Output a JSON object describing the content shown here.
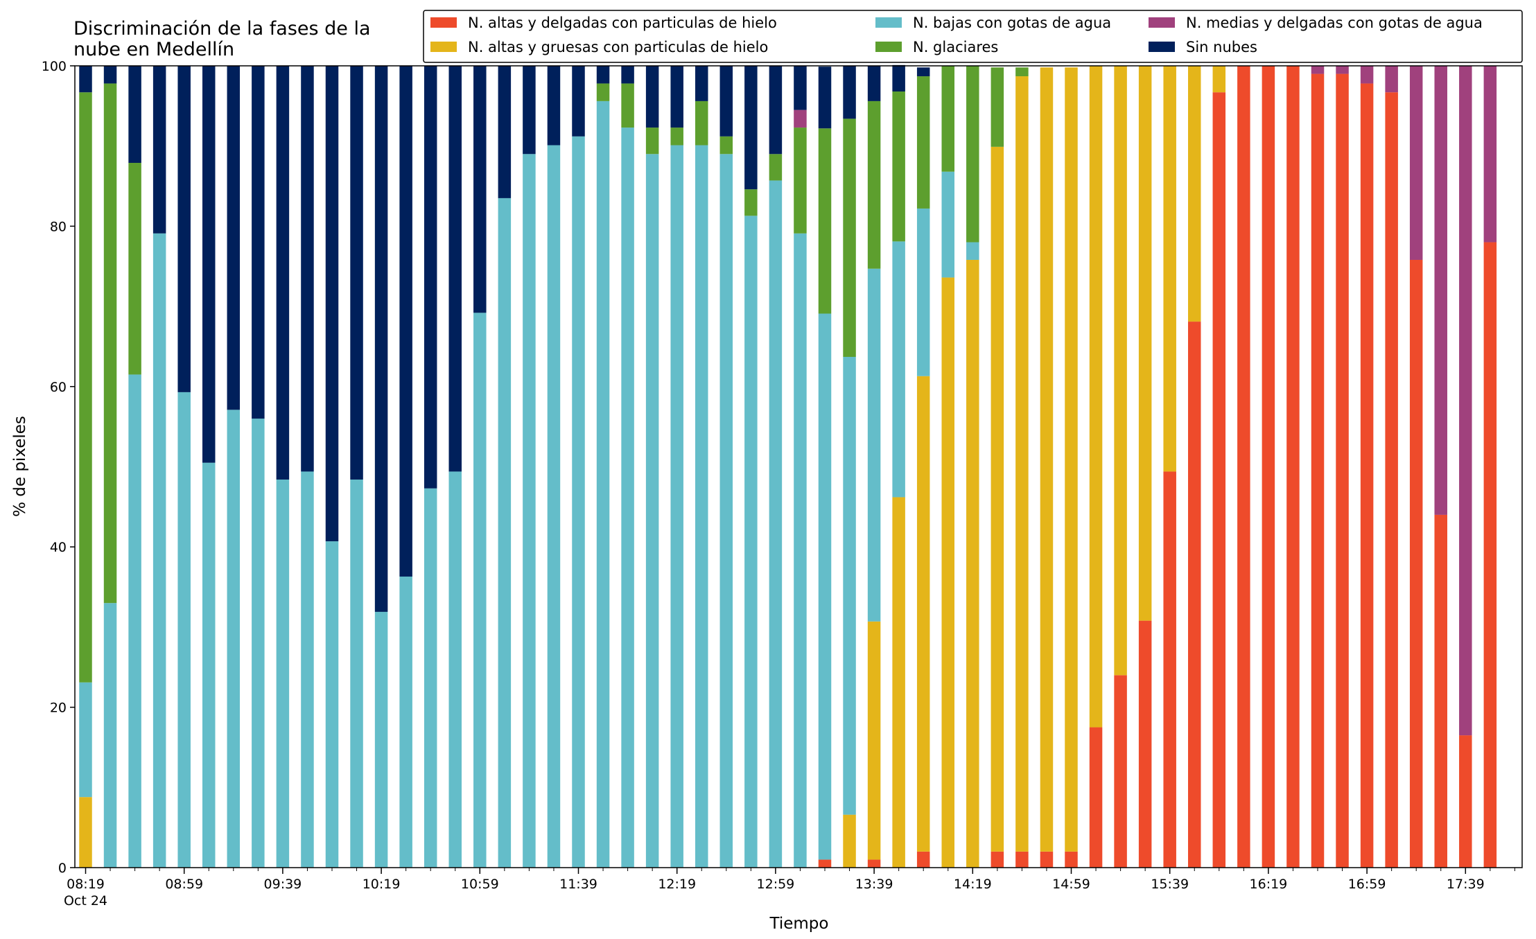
{
  "chart_data": {
    "type": "bar",
    "stacked": true,
    "title": "Discriminación de la fases de la\nnube en Medellín",
    "xlabel": "Tiempo",
    "ylabel": "% de pixeles",
    "ylim": [
      0,
      100
    ],
    "yticks": [
      0,
      20,
      40,
      60,
      80,
      100
    ],
    "grid": false,
    "legend_position": "top-right",
    "x_tick_labels": [
      {
        "index": 0,
        "label": "08:19",
        "sub": "Oct 24"
      },
      {
        "index": 4,
        "label": "08:59"
      },
      {
        "index": 8,
        "label": "09:39"
      },
      {
        "index": 12,
        "label": "10:19"
      },
      {
        "index": 16,
        "label": "10:59"
      },
      {
        "index": 20,
        "label": "11:39"
      },
      {
        "index": 24,
        "label": "12:19"
      },
      {
        "index": 28,
        "label": "12:59"
      },
      {
        "index": 32,
        "label": "13:39"
      },
      {
        "index": 36,
        "label": "14:19"
      },
      {
        "index": 40,
        "label": "14:59"
      },
      {
        "index": 44,
        "label": "15:39"
      },
      {
        "index": 48,
        "label": "16:19"
      },
      {
        "index": 52,
        "label": "16:59"
      },
      {
        "index": 56,
        "label": "17:39"
      }
    ],
    "series": [
      {
        "name": "N. altas y delgadas con particulas de hielo",
        "color": "#EE4B2B",
        "values": [
          0,
          0,
          0,
          0,
          0,
          0,
          0,
          0,
          0,
          0,
          0,
          0,
          0,
          0,
          0,
          0,
          0,
          0,
          0,
          0,
          0,
          0,
          0,
          0,
          0,
          0,
          0,
          0,
          0,
          0,
          1,
          0,
          1,
          0,
          2,
          0,
          0,
          2,
          2,
          2,
          2,
          17.5,
          24,
          30.8,
          49.4,
          68.1,
          96.7,
          100,
          100,
          100,
          99,
          99,
          97.8,
          96.7,
          75.8,
          44,
          16.5,
          78
        ]
      },
      {
        "name": "N. altas y gruesas con particulas de hielo",
        "color": "#E4B51A",
        "values": [
          8.8,
          0,
          0,
          0,
          0,
          0,
          0,
          0,
          0,
          0,
          0,
          0,
          0,
          0,
          0,
          0,
          0,
          0,
          0,
          0,
          0,
          0,
          0,
          0,
          0,
          0,
          0,
          0,
          0,
          0,
          0,
          6.6,
          29.7,
          46.2,
          59.3,
          73.6,
          75.8,
          87.9,
          96.7,
          97.8,
          97.8,
          82.5,
          76,
          69.2,
          50.6,
          31.9,
          3.3,
          0,
          0,
          0,
          0,
          0,
          0,
          0,
          0,
          0,
          0,
          0
        ]
      },
      {
        "name": "N. bajas con gotas de agua",
        "color": "#64BDC9",
        "values": [
          14.3,
          33,
          61.5,
          79.1,
          59.3,
          50.5,
          57.1,
          56,
          48.4,
          49.4,
          40.7,
          48.4,
          31.9,
          36.3,
          47.3,
          49.4,
          69.2,
          83.5,
          89,
          90.1,
          91.2,
          95.6,
          92.3,
          89,
          90.1,
          90.1,
          89,
          81.3,
          85.7,
          79.1,
          68.1,
          57.1,
          44,
          31.9,
          20.9,
          13.2,
          2.2,
          0,
          0,
          0,
          0,
          0,
          0,
          0,
          0,
          0,
          0,
          0,
          0,
          0,
          0,
          0,
          0,
          0,
          0,
          0,
          0,
          0
        ]
      },
      {
        "name": "N. glaciares",
        "color": "#5D9F2E",
        "values": [
          73.6,
          64.8,
          26.4,
          0,
          0,
          0,
          0,
          0,
          0,
          0,
          0,
          0,
          0,
          0,
          0,
          0,
          0,
          0,
          0,
          0,
          0,
          2.2,
          5.5,
          3.3,
          2.2,
          5.5,
          2.2,
          3.3,
          3.3,
          13.2,
          23.1,
          29.7,
          20.9,
          18.7,
          16.5,
          13.2,
          22,
          9.9,
          1.1,
          0,
          0,
          0,
          0,
          0,
          0,
          0,
          0,
          0,
          0,
          0,
          0,
          0,
          0,
          0,
          0,
          0,
          0,
          0
        ]
      },
      {
        "name": "N. medias y delgadas con gotas de agua",
        "color": "#A0417D",
        "values": [
          0,
          0,
          0,
          0,
          0,
          0,
          0,
          0,
          0,
          0,
          0,
          0,
          0,
          0,
          0,
          0,
          0,
          0,
          0,
          0,
          0,
          0,
          0,
          0,
          0,
          0,
          0,
          0,
          0,
          2.2,
          0,
          0,
          0,
          0,
          0,
          0,
          0,
          0,
          0,
          0,
          0,
          0,
          0,
          0,
          0,
          0,
          0,
          0,
          0,
          0,
          1,
          1,
          2.2,
          3.3,
          24.2,
          56,
          83.5,
          22
        ]
      },
      {
        "name": "Sin nubes",
        "color": "#00205B",
        "values": [
          3.3,
          2.2,
          12.1,
          20.9,
          40.7,
          49.5,
          42.9,
          44,
          51.6,
          50.6,
          59.3,
          51.6,
          68.1,
          63.7,
          52.7,
          50.6,
          30.8,
          16.5,
          11,
          9.9,
          8.8,
          2.2,
          2.2,
          7.7,
          7.7,
          4.4,
          8.8,
          15.4,
          11,
          5.5,
          7.7,
          6.6,
          4.4,
          3.3,
          1.1,
          0,
          0,
          0,
          0,
          0,
          0,
          0,
          0,
          0,
          0,
          0,
          0,
          0,
          0,
          0,
          0,
          0,
          0,
          0,
          0,
          0,
          0,
          0
        ]
      }
    ]
  }
}
